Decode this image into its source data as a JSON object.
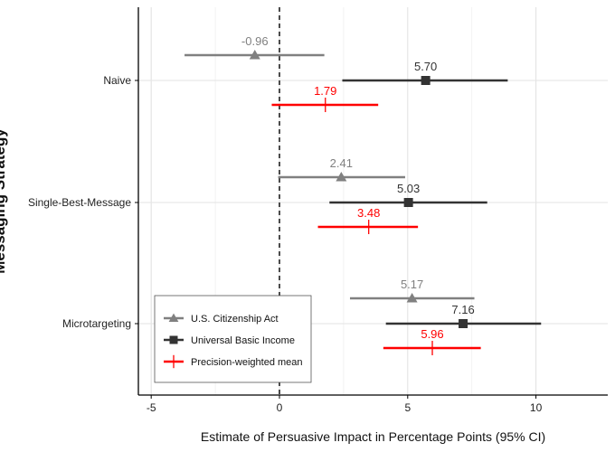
{
  "chart_data": {
    "type": "scatter",
    "subtype": "dot-and-whisker",
    "title": "",
    "xlabel": "Estimate of Persuasive Impact in Percentage Points (95% CI)",
    "ylabel": "Messaging Strategy",
    "xlim": [
      -5.5,
      12.8
    ],
    "xticks": [
      -5,
      0,
      5,
      10
    ],
    "grid": true,
    "reference_line": {
      "x": 0,
      "style": "dashed"
    },
    "legend_position": "bottom-left",
    "categories": [
      "Naive",
      "Single-Best-Message",
      "Microtargeting"
    ],
    "series": [
      {
        "name": "U.S. Citizenship Act",
        "color": "#808080",
        "marker": "triangle",
        "points": [
          {
            "category": "Naive",
            "estimate": -0.96,
            "label": "-0.96",
            "ci": [
              -3.7,
              1.75
            ]
          },
          {
            "category": "Single-Best-Message",
            "estimate": 2.41,
            "label": "2.41",
            "ci": [
              -0.05,
              4.9
            ]
          },
          {
            "category": "Microtargeting",
            "estimate": 5.17,
            "label": "5.17",
            "ci": [
              2.75,
              7.6
            ]
          }
        ]
      },
      {
        "name": "Universal Basic Income",
        "color": "#333333",
        "marker": "square",
        "points": [
          {
            "category": "Naive",
            "estimate": 5.7,
            "label": "5.70",
            "ci": [
              2.45,
              8.9
            ]
          },
          {
            "category": "Single-Best-Message",
            "estimate": 5.03,
            "label": "5.03",
            "ci": [
              1.95,
              8.1
            ]
          },
          {
            "category": "Microtargeting",
            "estimate": 7.16,
            "label": "7.16",
            "ci": [
              4.15,
              10.2
            ]
          }
        ]
      },
      {
        "name": "Precision-weighted mean",
        "color": "#ff0000",
        "marker": "plus",
        "points": [
          {
            "category": "Naive",
            "estimate": 1.79,
            "label": "1.79",
            "ci": [
              -0.3,
              3.85
            ]
          },
          {
            "category": "Single-Best-Message",
            "estimate": 3.48,
            "label": "3.48",
            "ci": [
              1.5,
              5.4
            ]
          },
          {
            "category": "Microtargeting",
            "estimate": 5.96,
            "label": "5.96",
            "ci": [
              4.05,
              7.85
            ]
          }
        ]
      }
    ]
  }
}
